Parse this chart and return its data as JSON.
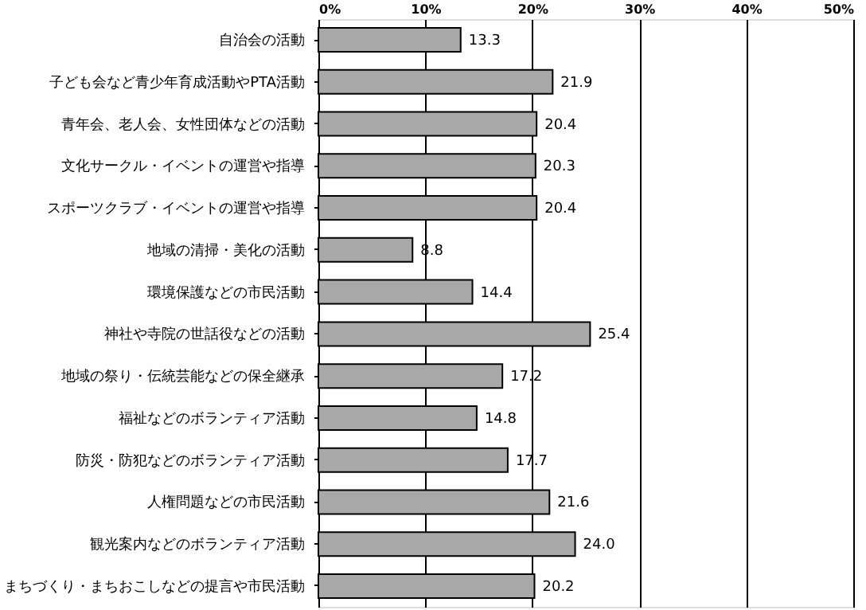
{
  "chart_data": {
    "type": "bar",
    "orientation": "horizontal",
    "categories": [
      "自治会の活動",
      "子ども会など青少年育成活動やPTA活動",
      "青年会、老人会、女性団体などの活動",
      "文化サークル・イベントの運営や指導",
      "スポーツクラブ・イベントの運営や指導",
      "地域の清掃・美化の活動",
      "環境保護などの市民活動",
      "神社や寺院の世話役などの活動",
      "地域の祭り・伝統芸能などの保全継承",
      "福祉などのボランティア活動",
      "防災・防犯などのボランティア活動",
      "人権問題などの市民活動",
      "観光案内などのボランティア活動",
      "まちづくり・まちおこしなどの提言や市民活動"
    ],
    "values": [
      13.3,
      21.9,
      20.4,
      20.3,
      20.4,
      8.8,
      14.4,
      25.4,
      17.2,
      14.8,
      17.7,
      21.6,
      24.0,
      20.2
    ],
    "color": "#a8a8a8",
    "xlim": [
      0,
      50
    ],
    "xticks": [
      {
        "value": 0,
        "label": "0%"
      },
      {
        "value": 10,
        "label": "10%"
      },
      {
        "value": 20,
        "label": "20%"
      },
      {
        "value": 30,
        "label": "30%"
      },
      {
        "value": 40,
        "label": "40%"
      },
      {
        "value": 50,
        "label": "50%"
      }
    ],
    "value_labels": [
      "13.3",
      "21.9",
      "20.4",
      "20.3",
      "20.4",
      "8.8",
      "14.4",
      "25.4",
      "17.2",
      "14.8",
      "17.7",
      "21.6",
      "24.0",
      "20.2"
    ],
    "grid": "x"
  }
}
